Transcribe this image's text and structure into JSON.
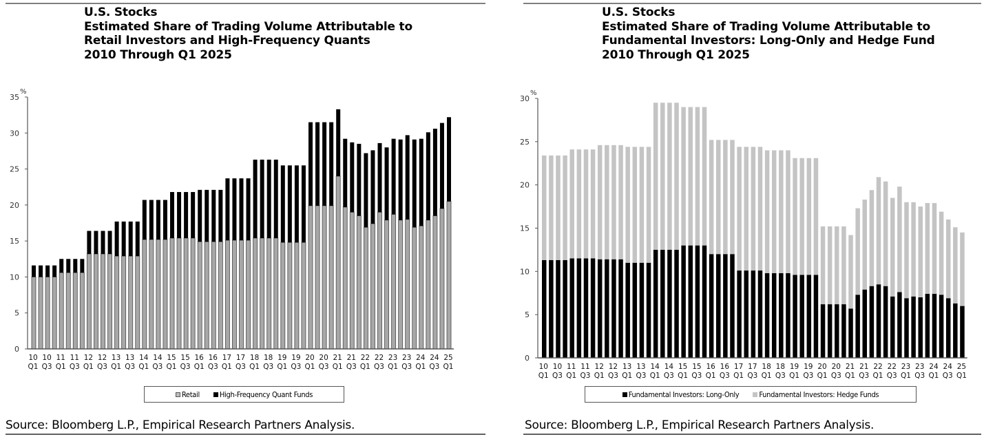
{
  "source_text": "Source: Bloomberg L.P., Empirical Research Partners Analysis.",
  "colors": {
    "retail": "#9a9a9a",
    "retail_edge": "#555555",
    "hfq": "#000000",
    "long_only": "#000000",
    "hedge_funds": "#c4c4c4",
    "axis": "#555555",
    "tick_label": "#333333"
  },
  "chart_data": [
    {
      "type": "bar",
      "stacked": true,
      "title_lines": [
        "U.S. Stocks",
        "Estimated Share of Trading Volume Attributable to",
        "Retail Investors and High-Frequency Quants",
        "2010 Through Q1 2025"
      ],
      "ylabel": "%",
      "xlabel": "",
      "ylim": [
        0,
        35
      ],
      "yticks": [
        0,
        5,
        10,
        15,
        20,
        25,
        30,
        35
      ],
      "grid": false,
      "legend_position": "bottom-center",
      "x_tick_labels": [
        [
          "10",
          "Q1"
        ],
        [
          "10",
          "Q3"
        ],
        [
          "11",
          "Q1"
        ],
        [
          "11",
          "Q3"
        ],
        [
          "12",
          "Q1"
        ],
        [
          "12",
          "Q3"
        ],
        [
          "13",
          "Q1"
        ],
        [
          "13",
          "Q3"
        ],
        [
          "14",
          "Q1"
        ],
        [
          "14",
          "Q3"
        ],
        [
          "15",
          "Q1"
        ],
        [
          "15",
          "Q3"
        ],
        [
          "16",
          "Q1"
        ],
        [
          "16",
          "Q3"
        ],
        [
          "17",
          "Q1"
        ],
        [
          "17",
          "Q3"
        ],
        [
          "18",
          "Q1"
        ],
        [
          "18",
          "Q3"
        ],
        [
          "19",
          "Q1"
        ],
        [
          "19",
          "Q3"
        ],
        [
          "20",
          "Q1"
        ],
        [
          "20",
          "Q3"
        ],
        [
          "21",
          "Q1"
        ],
        [
          "21",
          "Q3"
        ],
        [
          "22",
          "Q1"
        ],
        [
          "22",
          "Q3"
        ],
        [
          "23",
          "Q1"
        ],
        [
          "23",
          "Q3"
        ],
        [
          "24",
          "Q1"
        ],
        [
          "24",
          "Q3"
        ],
        [
          "25",
          "Q1"
        ]
      ],
      "categories": [
        "2010Q1",
        "2010Q2",
        "2010Q3",
        "2010Q4",
        "2011Q1",
        "2011Q2",
        "2011Q3",
        "2011Q4",
        "2012Q1",
        "2012Q2",
        "2012Q3",
        "2012Q4",
        "2013Q1",
        "2013Q2",
        "2013Q3",
        "2013Q4",
        "2014Q1",
        "2014Q2",
        "2014Q3",
        "2014Q4",
        "2015Q1",
        "2015Q2",
        "2015Q3",
        "2015Q4",
        "2016Q1",
        "2016Q2",
        "2016Q3",
        "2016Q4",
        "2017Q1",
        "2017Q2",
        "2017Q3",
        "2017Q4",
        "2018Q1",
        "2018Q2",
        "2018Q3",
        "2018Q4",
        "2019Q1",
        "2019Q2",
        "2019Q3",
        "2019Q4",
        "2020Q1",
        "2020Q2",
        "2020Q3",
        "2020Q4",
        "2021Q1",
        "2021Q2",
        "2021Q3",
        "2021Q4",
        "2022Q1",
        "2022Q2",
        "2022Q3",
        "2022Q4",
        "2023Q1",
        "2023Q2",
        "2023Q3",
        "2023Q4",
        "2024Q1",
        "2024Q2",
        "2024Q3",
        "2024Q4",
        "2025Q1"
      ],
      "series": [
        {
          "name": "Retail",
          "color_key": "retail",
          "values": [
            10.0,
            10.0,
            10.0,
            10.0,
            10.6,
            10.6,
            10.6,
            10.6,
            13.2,
            13.2,
            13.2,
            13.2,
            12.9,
            12.9,
            12.9,
            12.9,
            15.2,
            15.2,
            15.2,
            15.2,
            15.4,
            15.4,
            15.4,
            15.4,
            14.9,
            14.9,
            14.9,
            14.9,
            15.1,
            15.1,
            15.1,
            15.1,
            15.4,
            15.4,
            15.4,
            15.4,
            14.8,
            14.8,
            14.8,
            14.8,
            19.9,
            19.9,
            19.9,
            19.9,
            24.0,
            19.7,
            19.0,
            18.5,
            16.9,
            17.4,
            19.0,
            17.9,
            18.7,
            17.9,
            18.0,
            16.9,
            17.1,
            17.9,
            18.5,
            19.5,
            20.5
          ]
        },
        {
          "name": "High-Frequency Quant Funds",
          "color_key": "hfq",
          "values": [
            1.6,
            1.6,
            1.6,
            1.6,
            1.9,
            1.9,
            1.9,
            1.9,
            3.2,
            3.2,
            3.2,
            3.2,
            4.8,
            4.8,
            4.8,
            4.8,
            5.5,
            5.5,
            5.5,
            5.5,
            6.4,
            6.4,
            6.4,
            6.4,
            7.2,
            7.2,
            7.2,
            7.2,
            8.6,
            8.6,
            8.6,
            8.6,
            10.9,
            10.9,
            10.9,
            10.9,
            10.7,
            10.7,
            10.7,
            10.7,
            11.6,
            11.6,
            11.6,
            11.6,
            9.3,
            9.5,
            9.7,
            10.0,
            10.3,
            10.2,
            9.6,
            10.1,
            10.5,
            11.2,
            11.7,
            12.2,
            12.1,
            12.2,
            12.1,
            11.9,
            11.7
          ]
        }
      ]
    },
    {
      "type": "bar",
      "stacked": true,
      "title_lines": [
        "U.S. Stocks",
        "Estimated Share of Trading Volume Attributable to",
        "Fundamental Investors: Long-Only and Hedge Fund",
        "2010 Through Q1 2025"
      ],
      "ylabel": "%",
      "xlabel": "",
      "ylim": [
        0,
        30
      ],
      "yticks": [
        0,
        5,
        10,
        15,
        20,
        25,
        30
      ],
      "grid": false,
      "legend_position": "bottom-center",
      "x_tick_labels": [
        [
          "10",
          "Q1"
        ],
        [
          "10",
          "Q3"
        ],
        [
          "11",
          "Q1"
        ],
        [
          "11",
          "Q3"
        ],
        [
          "12",
          "Q1"
        ],
        [
          "12",
          "Q3"
        ],
        [
          "13",
          "Q1"
        ],
        [
          "13",
          "Q3"
        ],
        [
          "14",
          "Q1"
        ],
        [
          "14",
          "Q3"
        ],
        [
          "15",
          "Q1"
        ],
        [
          "15",
          "Q3"
        ],
        [
          "16",
          "Q1"
        ],
        [
          "16",
          "Q3"
        ],
        [
          "17",
          "Q1"
        ],
        [
          "17",
          "Q3"
        ],
        [
          "18",
          "Q1"
        ],
        [
          "18",
          "Q3"
        ],
        [
          "19",
          "Q1"
        ],
        [
          "19",
          "Q3"
        ],
        [
          "20",
          "Q1"
        ],
        [
          "20",
          "Q3"
        ],
        [
          "21",
          "Q1"
        ],
        [
          "21",
          "Q3"
        ],
        [
          "22",
          "Q1"
        ],
        [
          "22",
          "Q3"
        ],
        [
          "23",
          "Q1"
        ],
        [
          "23",
          "Q3"
        ],
        [
          "24",
          "Q1"
        ],
        [
          "24",
          "Q3"
        ],
        [
          "25",
          "Q1"
        ]
      ],
      "categories": [
        "2010Q1",
        "2010Q2",
        "2010Q3",
        "2010Q4",
        "2011Q1",
        "2011Q2",
        "2011Q3",
        "2011Q4",
        "2012Q1",
        "2012Q2",
        "2012Q3",
        "2012Q4",
        "2013Q1",
        "2013Q2",
        "2013Q3",
        "2013Q4",
        "2014Q1",
        "2014Q2",
        "2014Q3",
        "2014Q4",
        "2015Q1",
        "2015Q2",
        "2015Q3",
        "2015Q4",
        "2016Q1",
        "2016Q2",
        "2016Q3",
        "2016Q4",
        "2017Q1",
        "2017Q2",
        "2017Q3",
        "2017Q4",
        "2018Q1",
        "2018Q2",
        "2018Q3",
        "2018Q4",
        "2019Q1",
        "2019Q2",
        "2019Q3",
        "2019Q4",
        "2020Q1",
        "2020Q2",
        "2020Q3",
        "2020Q4",
        "2021Q1",
        "2021Q2",
        "2021Q3",
        "2021Q4",
        "2022Q1",
        "2022Q2",
        "2022Q3",
        "2022Q4",
        "2023Q1",
        "2023Q2",
        "2023Q3",
        "2023Q4",
        "2024Q1",
        "2024Q2",
        "2024Q3",
        "2024Q4",
        "2025Q1"
      ],
      "series": [
        {
          "name": "Fundamental Investors: Long-Only",
          "color_key": "long_only",
          "values": [
            11.3,
            11.3,
            11.3,
            11.3,
            11.5,
            11.5,
            11.5,
            11.5,
            11.4,
            11.4,
            11.4,
            11.4,
            11.0,
            11.0,
            11.0,
            11.0,
            12.5,
            12.5,
            12.5,
            12.5,
            13.0,
            13.0,
            13.0,
            13.0,
            12.0,
            12.0,
            12.0,
            12.0,
            10.1,
            10.1,
            10.1,
            10.1,
            9.8,
            9.8,
            9.8,
            9.8,
            9.6,
            9.6,
            9.6,
            9.6,
            6.2,
            6.2,
            6.2,
            6.2,
            5.7,
            7.3,
            7.9,
            8.3,
            8.5,
            8.3,
            7.1,
            7.6,
            6.9,
            7.1,
            7.0,
            7.4,
            7.4,
            7.3,
            6.9,
            6.3,
            6.0
          ]
        },
        {
          "name": "Fundamental Investors: Hedge Funds",
          "color_key": "hedge_funds",
          "values": [
            12.1,
            12.1,
            12.1,
            12.1,
            12.6,
            12.6,
            12.6,
            12.6,
            13.2,
            13.2,
            13.2,
            13.2,
            13.4,
            13.4,
            13.4,
            13.4,
            17.0,
            17.0,
            17.0,
            17.0,
            16.0,
            16.0,
            16.0,
            16.0,
            13.2,
            13.2,
            13.2,
            13.2,
            14.3,
            14.3,
            14.3,
            14.3,
            14.2,
            14.2,
            14.2,
            14.2,
            13.5,
            13.5,
            13.5,
            13.5,
            9.0,
            9.0,
            9.0,
            9.0,
            8.5,
            10.0,
            10.4,
            11.1,
            12.4,
            12.1,
            11.4,
            12.2,
            11.1,
            10.9,
            10.5,
            10.5,
            10.5,
            9.6,
            9.1,
            8.8,
            8.5
          ]
        }
      ]
    }
  ]
}
